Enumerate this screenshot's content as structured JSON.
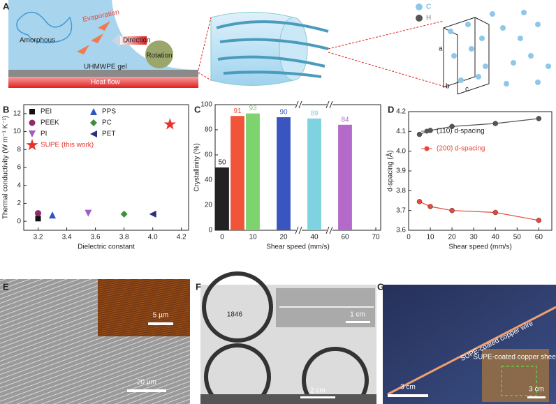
{
  "panel_a": {
    "label": "A",
    "amorphous": "Amorphous",
    "evaporation": "Evaporation",
    "direction": "Direction",
    "rotation": "Rotation",
    "gel": "UHMWPE gel",
    "heat_flow": "Heat flow",
    "atoms": [
      "C",
      "H"
    ],
    "cell_axes": [
      "a",
      "b",
      "c"
    ]
  },
  "chart_data": [
    {
      "panel": "B",
      "type": "scatter",
      "x_label": "Dielectric constant",
      "y_label": "Thermal conductivity (W m⁻¹ K⁻¹)",
      "xlim": [
        3.1,
        4.25
      ],
      "ylim": [
        -1,
        13
      ],
      "xticks": [
        3.2,
        3.4,
        3.6,
        3.8,
        {
          "value": 4,
          "label": "4.0"
        },
        4.2
      ],
      "yticks": [
        0,
        2,
        4,
        6,
        8,
        10,
        12
      ],
      "series": [
        {
          "name": "PEI",
          "color": "#111111",
          "marker": "square",
          "x": [
            3.2
          ],
          "values": [
            0.3
          ]
        },
        {
          "name": "PPS",
          "color": "#2f55c4",
          "marker": "triangle-up",
          "x": [
            3.3
          ],
          "values": [
            0.7
          ]
        },
        {
          "name": "PEEK",
          "color": "#8e2a6e",
          "marker": "circle",
          "x": [
            3.2
          ],
          "values": [
            0.9
          ]
        },
        {
          "name": "PC",
          "color": "#3c8f3a",
          "marker": "diamond",
          "x": [
            3.8
          ],
          "values": [
            0.8
          ]
        },
        {
          "name": "PI",
          "color": "#a45bc7",
          "marker": "triangle-down",
          "x": [
            3.55
          ],
          "values": [
            0.9
          ]
        },
        {
          "name": "PET",
          "color": "#2a2f7a",
          "marker": "triangle-left",
          "x": [
            4.0
          ],
          "values": [
            0.8
          ]
        },
        {
          "name": "SUPE (this work)",
          "color": "#e8322b",
          "marker": "star",
          "x": [
            4.12
          ],
          "values": [
            10.8
          ]
        }
      ]
    },
    {
      "panel": "C",
      "type": "bar",
      "x_label": "Shear speed (mm/s)",
      "y_label": "Crystallinity (%)",
      "x": [
        0,
        5,
        10,
        20,
        40,
        60
      ],
      "values": [
        50,
        91,
        93,
        90,
        89,
        84
      ],
      "colors": [
        "#222222",
        "#f0553a",
        "#7dd36e",
        "#3b55c0",
        "#7fd3e0",
        "#b36ac8"
      ],
      "xticks": [
        0,
        10,
        20,
        40,
        60,
        70
      ],
      "axis_breaks": true,
      "ylim": [
        0,
        100
      ],
      "yticks": [
        0,
        20,
        40,
        60,
        80,
        100
      ]
    },
    {
      "panel": "D",
      "type": "line",
      "x_label": "Shear speed (mm/s)",
      "y_label": "d-spacing (Å)",
      "xlim": [
        0,
        66
      ],
      "xticks": [
        0,
        10,
        20,
        30,
        40,
        50,
        60
      ],
      "ylim": [
        3.6,
        4.2
      ],
      "yticks": [
        3.6,
        3.7,
        3.8,
        3.9,
        {
          "value": 4,
          "label": "4.0"
        },
        4.1,
        4.2
      ],
      "series": [
        {
          "name": "(110) d-spacing",
          "color": "#555555",
          "x": [
            5,
            10,
            20,
            40,
            60
          ],
          "values": [
            4.085,
            4.105,
            4.125,
            4.14,
            4.165
          ]
        },
        {
          "name": "(200) d-spacing",
          "color": "#e8473b",
          "x": [
            5,
            10,
            20,
            40,
            60
          ],
          "values": [
            3.745,
            3.72,
            3.7,
            3.69,
            3.65
          ]
        }
      ]
    }
  ],
  "panel_e": {
    "label": "E",
    "inset_scale": "5 µm",
    "scale": "20 µm"
  },
  "panel_f": {
    "label": "F",
    "year": "1846",
    "inset_scale": "1 cm",
    "scale": "2 cm"
  },
  "panel_g": {
    "label": "G",
    "wire": "SUPE-coated copper wire",
    "sheet": "SUPE-coated copper sheet",
    "scale": "3 cm",
    "inset_scale": "3 cm"
  }
}
